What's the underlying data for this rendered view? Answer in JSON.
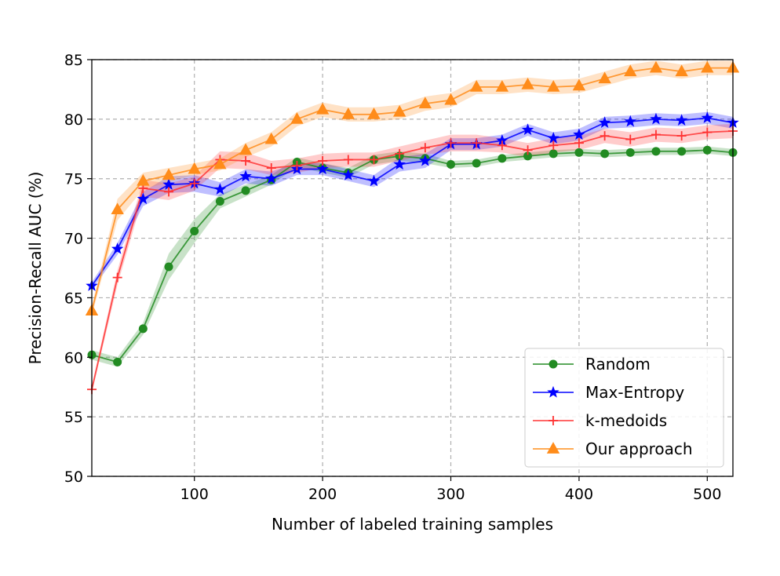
{
  "chart_data": {
    "type": "line",
    "xlabel": "Number of labeled training samples",
    "ylabel": "Precision-Recall AUC (%)",
    "xlim": [
      20,
      520
    ],
    "ylim": [
      50,
      85
    ],
    "xticks": [
      100,
      200,
      300,
      400,
      500
    ],
    "yticks": [
      50,
      55,
      60,
      65,
      70,
      75,
      80,
      85
    ],
    "grid": true,
    "legend_position": "lower-right",
    "x": [
      20,
      40,
      60,
      80,
      100,
      120,
      140,
      160,
      180,
      200,
      220,
      240,
      260,
      280,
      300,
      320,
      340,
      360,
      380,
      400,
      420,
      440,
      460,
      480,
      500,
      520
    ],
    "series": [
      {
        "name": "Random",
        "color": "#228b22",
        "marker": "circle",
        "values": [
          60.2,
          59.6,
          62.4,
          67.6,
          70.6,
          73.1,
          74.0,
          74.9,
          76.4,
          75.9,
          75.5,
          76.6,
          76.9,
          76.7,
          76.2,
          76.3,
          76.7,
          76.9,
          77.1,
          77.2,
          77.1,
          77.2,
          77.3,
          77.3,
          77.4,
          77.2
        ],
        "band": [
          0.4,
          0.4,
          0.5,
          1.1,
          1.0,
          0.6,
          0.5,
          0.4,
          0.4,
          0.4,
          0.4,
          0.4,
          0.4,
          0.4,
          0.3,
          0.3,
          0.3,
          0.3,
          0.3,
          0.3,
          0.3,
          0.3,
          0.3,
          0.3,
          0.3,
          0.3
        ]
      },
      {
        "name": "Max-Entropy",
        "color": "#0000ff",
        "marker": "star",
        "values": [
          66.0,
          69.1,
          73.3,
          74.5,
          74.6,
          74.1,
          75.2,
          75.0,
          75.8,
          75.8,
          75.3,
          74.8,
          76.2,
          76.5,
          77.9,
          77.9,
          78.2,
          79.1,
          78.4,
          78.7,
          79.7,
          79.8,
          80.0,
          79.9,
          80.1,
          79.7
        ],
        "band": [
          0.3,
          0.5,
          0.6,
          0.7,
          0.7,
          0.6,
          0.6,
          0.6,
          0.5,
          0.5,
          0.5,
          0.5,
          0.6,
          0.6,
          0.5,
          0.5,
          0.5,
          0.5,
          0.5,
          0.5,
          0.5,
          0.5,
          0.5,
          0.5,
          0.5,
          0.5
        ]
      },
      {
        "name": "k-medoids",
        "color": "#ff3333",
        "marker": "plus",
        "values": [
          57.3,
          66.7,
          74.2,
          73.9,
          74.6,
          76.6,
          76.5,
          75.9,
          76.1,
          76.5,
          76.6,
          76.6,
          77.1,
          77.6,
          78.0,
          78.0,
          77.8,
          77.4,
          77.8,
          78.0,
          78.6,
          78.3,
          78.7,
          78.6,
          78.9,
          79.0
        ],
        "band": [
          0.3,
          0.6,
          0.7,
          0.7,
          0.6,
          0.7,
          0.7,
          0.6,
          0.6,
          0.6,
          0.6,
          0.6,
          0.6,
          0.6,
          0.7,
          0.7,
          0.6,
          0.6,
          0.6,
          0.6,
          0.6,
          0.6,
          0.6,
          0.6,
          0.6,
          0.6
        ]
      },
      {
        "name": "Our approach",
        "color": "#ff8c1a",
        "marker": "triangle",
        "values": [
          63.9,
          72.4,
          74.8,
          75.3,
          75.8,
          76.2,
          77.4,
          78.3,
          80.0,
          80.8,
          80.4,
          80.4,
          80.6,
          81.3,
          81.6,
          82.7,
          82.7,
          82.9,
          82.7,
          82.8,
          83.4,
          84.0,
          84.3,
          84.0,
          84.3,
          84.3
        ],
        "band": [
          0.4,
          0.9,
          0.7,
          0.6,
          0.5,
          0.5,
          0.6,
          0.6,
          0.6,
          0.6,
          0.6,
          0.6,
          0.6,
          0.6,
          0.6,
          0.6,
          0.6,
          0.6,
          0.6,
          0.6,
          0.6,
          0.6,
          0.6,
          0.6,
          0.6,
          0.6
        ]
      }
    ]
  }
}
